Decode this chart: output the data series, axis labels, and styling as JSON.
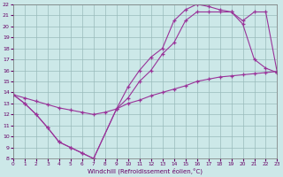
{
  "xlabel": "Windchill (Refroidissement éolien,°C)",
  "bg_color": "#cce8e8",
  "line_color": "#993399",
  "grid_color": "#99bbbb",
  "line1_x": [
    0,
    1,
    2,
    3,
    4,
    5,
    6,
    7,
    8,
    9,
    10,
    11,
    12,
    13,
    14,
    15,
    16,
    17,
    18,
    19,
    20,
    21,
    22,
    23
  ],
  "line1_y": [
    13.8,
    13.5,
    13.2,
    12.9,
    12.6,
    12.4,
    12.2,
    12.0,
    12.2,
    12.5,
    13.0,
    13.3,
    13.7,
    14.0,
    14.3,
    14.6,
    15.0,
    15.2,
    15.4,
    15.5,
    15.6,
    15.7,
    15.8,
    15.9
  ],
  "line2_x": [
    0,
    1,
    2,
    3,
    4,
    5,
    6,
    7,
    9,
    10,
    11,
    12,
    13,
    14,
    15,
    16,
    17,
    18,
    19,
    20,
    21,
    22,
    23
  ],
  "line2_y": [
    13.8,
    13.0,
    12.0,
    10.8,
    9.5,
    9.0,
    8.5,
    8.0,
    12.5,
    14.5,
    16.0,
    17.2,
    18.0,
    20.5,
    21.5,
    22.0,
    21.8,
    21.5,
    21.3,
    20.2,
    17.0,
    16.2,
    15.8
  ],
  "line3_x": [
    0,
    1,
    2,
    3,
    4,
    5,
    6,
    7,
    9,
    10,
    11,
    12,
    13,
    14,
    15,
    16,
    17,
    18,
    19,
    20,
    21,
    22,
    23
  ],
  "line3_y": [
    13.8,
    13.0,
    12.0,
    10.8,
    9.5,
    9.0,
    8.5,
    8.0,
    12.5,
    13.5,
    15.0,
    16.0,
    17.5,
    18.5,
    20.5,
    21.3,
    21.3,
    21.3,
    21.3,
    20.5,
    21.3,
    21.3,
    15.8
  ],
  "xlim": [
    0,
    23
  ],
  "ylim": [
    8,
    22
  ],
  "xticks": [
    0,
    1,
    2,
    3,
    4,
    5,
    6,
    7,
    8,
    9,
    10,
    11,
    12,
    13,
    14,
    15,
    16,
    17,
    18,
    19,
    20,
    21,
    22,
    23
  ],
  "yticks": [
    8,
    9,
    10,
    11,
    12,
    13,
    14,
    15,
    16,
    17,
    18,
    19,
    20,
    21,
    22
  ]
}
